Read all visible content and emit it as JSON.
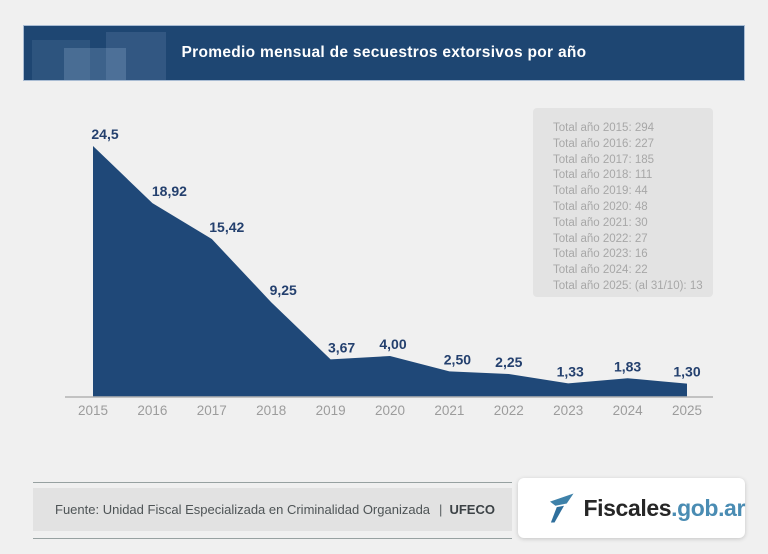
{
  "header": {
    "title": "Promedio mensual de secuestros extorsivos por año",
    "background": "#1e4672",
    "text_color": "#ffffff"
  },
  "chart_data": {
    "type": "area",
    "title": "Promedio mensual de secuestros extorsivos por año",
    "x": [
      2015,
      2016,
      2017,
      2018,
      2019,
      2020,
      2021,
      2022,
      2023,
      2024,
      2025
    ],
    "values": [
      24.5,
      18.92,
      15.42,
      9.25,
      3.67,
      4.0,
      2.5,
      2.25,
      1.33,
      1.83,
      1.3
    ],
    "point_labels": [
      "24,5",
      "18,92",
      "15,42",
      "9,25",
      "3,67",
      "4,00",
      "2,50",
      "2,25",
      "1,33",
      "1,83",
      "1,30"
    ],
    "xlabel": "",
    "ylabel": "",
    "ylim": [
      0,
      25
    ],
    "grid": false,
    "legend_position": "top-right",
    "area_color": "#1f4878",
    "label_color": "#24406e",
    "axis_color": "#b3b3b3",
    "tick_color": "#9c9c9c",
    "annual_totals": [
      {
        "year": "2015",
        "total": "294",
        "text": "Total año 2015: 294"
      },
      {
        "year": "2016",
        "total": "227",
        "text": "Total año 2016: 227"
      },
      {
        "year": "2017",
        "total": "185",
        "text": "Total año 2017: 185"
      },
      {
        "year": "2018",
        "total": "111",
        "text": "Total año 2018: 111"
      },
      {
        "year": "2019",
        "total": "44",
        "text": "Total año 2019: 44"
      },
      {
        "year": "2020",
        "total": "48",
        "text": "Total año 2020: 48"
      },
      {
        "year": "2021",
        "total": "30",
        "text": "Total año 2021: 30"
      },
      {
        "year": "2022",
        "total": "27",
        "text": "Total año 2022: 27"
      },
      {
        "year": "2023",
        "total": "16",
        "text": "Total año 2023: 16"
      },
      {
        "year": "2024",
        "total": "22",
        "text": "Total año 2024: 22"
      },
      {
        "year": "2025",
        "total": "13",
        "text": "Total año 2025: (al 31/10): 13"
      }
    ]
  },
  "source": {
    "prefix": "Fuente: Unidad Fiscal Especializada en Criminalidad Organizada",
    "separator": "|",
    "org": "UFECO"
  },
  "logo": {
    "brand": "Fiscales",
    "suffix": ".gob.ar",
    "brand_color": "#262626",
    "suffix_color": "#4a8cb3",
    "icon": "fiscales-f-flag-icon",
    "icon_color_top": "#3e81a9",
    "icon_color_bottom": "#2f6f9c"
  }
}
